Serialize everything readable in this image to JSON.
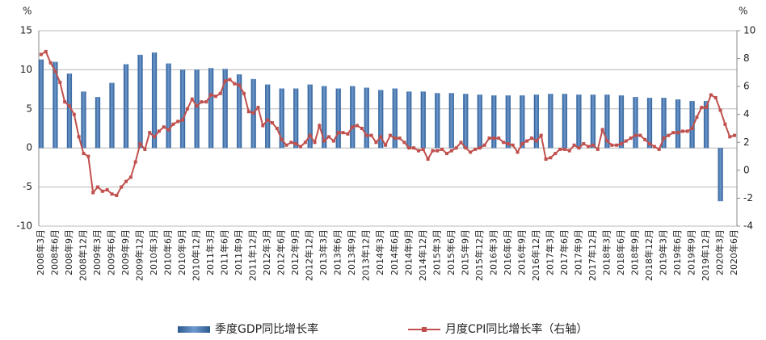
{
  "chart_data": {
    "type": "bar-line",
    "y_label": "%",
    "y2_label": "%",
    "categories": [
      "2008年3月",
      null,
      null,
      "2008年6月",
      null,
      null,
      "2008年9月",
      null,
      null,
      "2008年12月",
      null,
      null,
      "2009年3月",
      null,
      null,
      "2009年6月",
      null,
      null,
      "2009年9月",
      null,
      null,
      "2009年12月",
      null,
      null,
      "2010年3月",
      null,
      null,
      "2010年6月",
      null,
      null,
      "2010年9月",
      null,
      null,
      "2010年12月",
      null,
      null,
      "2011年3月",
      null,
      null,
      "2011年6月",
      null,
      null,
      "2011年9月",
      null,
      null,
      "2011年12月",
      null,
      null,
      "2012年3月",
      null,
      null,
      "2012年6月",
      null,
      null,
      "2012年9月",
      null,
      null,
      "2012年12月",
      null,
      null,
      "2013年3月",
      null,
      null,
      "2013年6月",
      null,
      null,
      "2013年9月",
      null,
      null,
      "2013年12月",
      null,
      null,
      "2014年3月",
      null,
      null,
      "2014年6月",
      null,
      null,
      "2014年9月",
      null,
      null,
      "2014年12月",
      null,
      null,
      "2015年3月",
      null,
      null,
      "2015年6月",
      null,
      null,
      "2015年9月",
      null,
      null,
      "2015年12月",
      null,
      null,
      "2016年3月",
      null,
      null,
      "2016年6月",
      null,
      null,
      "2016年9月",
      null,
      null,
      "2016年12月",
      null,
      null,
      "2017年3月",
      null,
      null,
      "2017年6月",
      null,
      null,
      "2017年9月",
      null,
      null,
      "2017年12月",
      null,
      null,
      "2018年3月",
      null,
      null,
      "2018年6月",
      null,
      null,
      "2018年9月",
      null,
      null,
      "2018年12月",
      null,
      null,
      "2019年3月",
      null,
      null,
      "2019年6月",
      null,
      null,
      "2019年9月",
      null,
      null,
      "2019年12月",
      null,
      null,
      "2020年3月",
      null,
      null,
      "2020年6月"
    ],
    "series": [
      {
        "name": "季度GDP同比增长率",
        "type": "bar",
        "color": "#4f81bd",
        "values": [
          11.3,
          null,
          null,
          11,
          null,
          null,
          9.5,
          null,
          null,
          7.2,
          null,
          null,
          6.5,
          null,
          null,
          8.3,
          null,
          null,
          10.7,
          null,
          null,
          11.9,
          null,
          null,
          12.2,
          null,
          null,
          10.8,
          null,
          null,
          10,
          null,
          null,
          10,
          null,
          null,
          10.2,
          null,
          null,
          10.1,
          null,
          null,
          9.4,
          null,
          null,
          8.8,
          null,
          null,
          8.1,
          null,
          null,
          7.6,
          null,
          null,
          7.6,
          null,
          null,
          8.1,
          null,
          null,
          7.9,
          null,
          null,
          7.6,
          null,
          null,
          7.9,
          null,
          null,
          7.7,
          null,
          null,
          7.4,
          null,
          null,
          7.6,
          null,
          null,
          7.2,
          null,
          null,
          7.2,
          null,
          null,
          7,
          null,
          null,
          7,
          null,
          null,
          6.9,
          null,
          null,
          6.8,
          null,
          null,
          6.7,
          null,
          null,
          6.7,
          null,
          null,
          6.7,
          null,
          null,
          6.8,
          null,
          null,
          6.9,
          null,
          null,
          6.9,
          null,
          null,
          6.8,
          null,
          null,
          6.8,
          null,
          null,
          6.8,
          null,
          null,
          6.7,
          null,
          null,
          6.5,
          null,
          null,
          6.4,
          null,
          null,
          6.4,
          null,
          null,
          6.2,
          null,
          null,
          6,
          null,
          null,
          6,
          null,
          null,
          -6.8,
          null,
          null,
          null
        ]
      },
      {
        "name": "月度CPI同比增长率（右轴）",
        "type": "line",
        "axis": "y2",
        "color": "#c0504d",
        "values": [
          8.3,
          8.5,
          7.7,
          7.1,
          6.3,
          4.9,
          4.6,
          4.0,
          2.4,
          1.2,
          1.0,
          -1.6,
          -1.2,
          -1.5,
          -1.4,
          -1.7,
          -1.8,
          -1.2,
          -0.8,
          -0.5,
          0.6,
          1.9,
          1.5,
          2.7,
          2.4,
          2.8,
          3.1,
          2.9,
          3.3,
          3.5,
          3.6,
          4.4,
          5.1,
          4.6,
          4.9,
          4.9,
          5.4,
          5.3,
          5.5,
          6.4,
          6.5,
          6.2,
          6.1,
          5.5,
          4.2,
          4.1,
          4.5,
          3.2,
          3.6,
          3.4,
          3.0,
          2.2,
          1.8,
          2.0,
          1.9,
          1.7,
          2.0,
          2.5,
          2.0,
          3.2,
          2.1,
          2.4,
          2.1,
          2.7,
          2.7,
          2.6,
          3.1,
          3.2,
          3.0,
          2.5,
          2.5,
          2.0,
          2.4,
          1.8,
          2.5,
          2.3,
          2.3,
          2.0,
          1.6,
          1.6,
          1.4,
          1.5,
          0.8,
          1.4,
          1.4,
          1.5,
          1.2,
          1.4,
          1.6,
          2.0,
          1.6,
          1.3,
          1.5,
          1.6,
          1.8,
          2.3,
          2.3,
          2.3,
          2.0,
          1.9,
          1.8,
          1.3,
          1.9,
          2.1,
          2.3,
          2.1,
          2.5,
          0.8,
          0.9,
          1.2,
          1.5,
          1.5,
          1.4,
          1.8,
          1.6,
          1.9,
          1.7,
          1.8,
          1.5,
          2.9,
          2.1,
          1.8,
          1.8,
          1.9,
          2.1,
          2.3,
          2.5,
          2.5,
          2.2,
          1.9,
          1.7,
          1.5,
          2.3,
          2.5,
          2.7,
          2.7,
          2.8,
          2.8,
          3.0,
          3.8,
          4.5,
          4.5,
          5.4,
          5.2,
          4.3,
          3.3,
          2.4,
          2.5
        ]
      }
    ],
    "ylim": [
      -10,
      15
    ],
    "yticks": [
      -10,
      -5,
      0,
      5,
      10,
      15
    ],
    "y2lim": [
      -4,
      10
    ],
    "y2ticks": [
      -4,
      -2,
      0,
      2,
      4,
      6,
      8,
      10
    ],
    "grid": true,
    "legend": "bottom"
  }
}
